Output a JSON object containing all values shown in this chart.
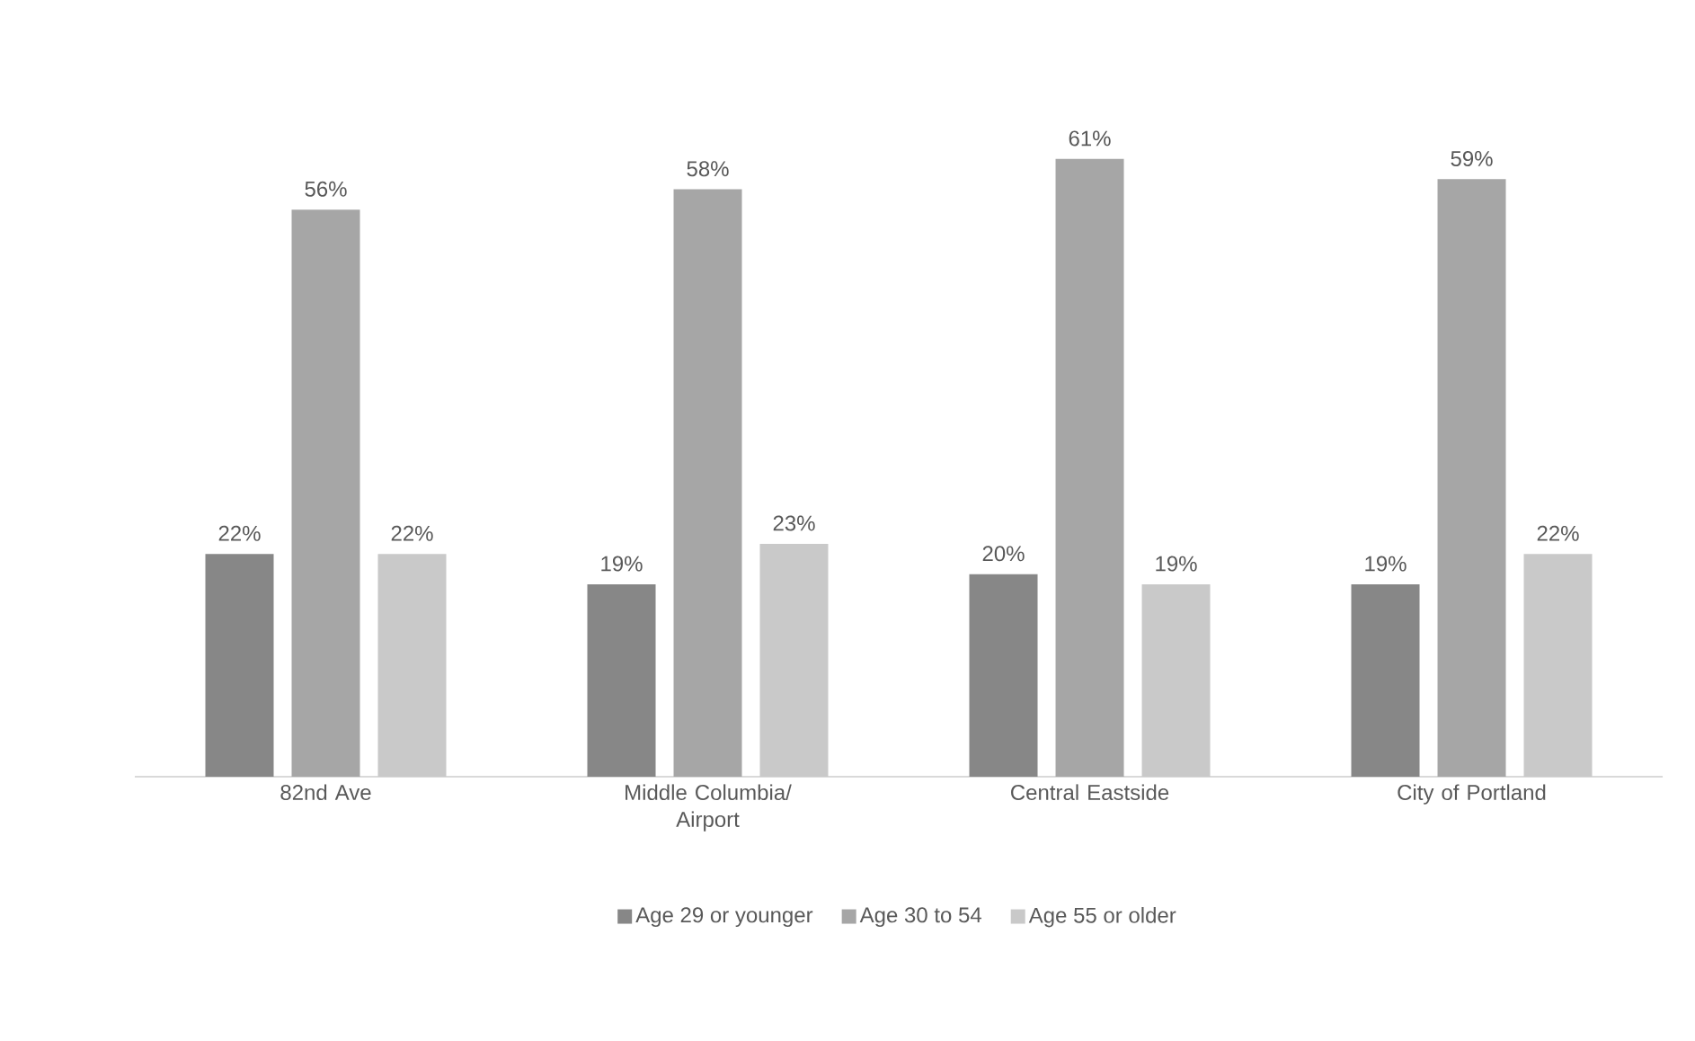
{
  "chart_data": {
    "type": "bar",
    "categories": [
      "82nd Ave",
      "Middle Columbia/ Airport",
      "Central Eastside",
      "City of Portland"
    ],
    "series": [
      {
        "name": "Age 29 or younger",
        "color": "#878787",
        "values": [
          22,
          19,
          20,
          19
        ],
        "value_labels": [
          "22%",
          "19%",
          "20%",
          "19%"
        ]
      },
      {
        "name": "Age 30 to 54",
        "color": "#a6a6a6",
        "values": [
          56,
          58,
          61,
          59
        ],
        "value_labels": [
          "56%",
          "58%",
          "61%",
          "59%"
        ]
      },
      {
        "name": "Age 55 or older",
        "color": "#c9c9c9",
        "values": [
          22,
          23,
          19,
          22
        ],
        "value_labels": [
          "22%",
          "23%",
          "19%",
          "22%"
        ]
      }
    ],
    "legend": "bottom"
  }
}
